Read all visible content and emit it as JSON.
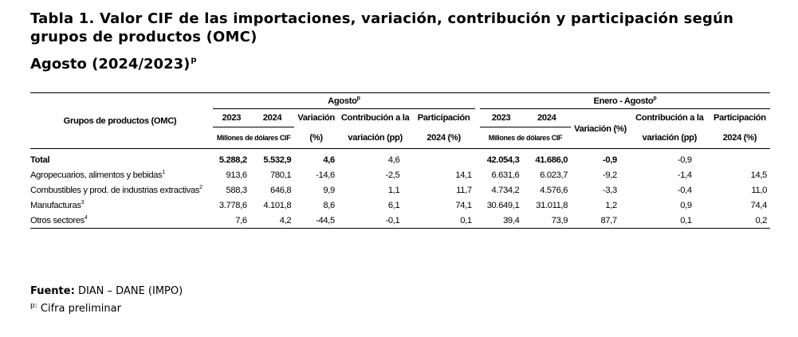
{
  "title": "Tabla 1. Valor CIF de las importaciones, variación, contribución y participación según grupos de productos (OMC)",
  "subtitle": "Agosto (2024/2023)",
  "subtitle_sup": "p",
  "table": {
    "group_header_label": "Grupos de productos (OMC)",
    "period1": "Agosto",
    "period2": "Enero - Agosto",
    "period_sup": "p",
    "year_2023": "2023",
    "year_2024": "2024",
    "millones": "Millones de dólares CIF",
    "variacion": "Variación",
    "variacion_unit": "(%)",
    "variacion_full": "Variación (%)",
    "contrib_l1": "Contribución a la",
    "contrib_l2": "variación (pp)",
    "partic_l1": "Participación",
    "partic_l2": "2024 (%)",
    "rows": [
      {
        "label": "Total",
        "sup": "",
        "a2023": "5.288,2",
        "a2024": "5.532,9",
        "var": "4,6",
        "con": "4,6",
        "par": "",
        "e2023": "42.054,3",
        "e2024": "41.686,0",
        "evar": "-0,9",
        "econ": "-0,9",
        "epar": ""
      },
      {
        "label": "Agropecuarios, alimentos y bebidas",
        "sup": "1",
        "a2023": "913,6",
        "a2024": "780,1",
        "var": "-14,6",
        "con": "-2,5",
        "par": "14,1",
        "e2023": "6.631,6",
        "e2024": "6.023,7",
        "evar": "-9,2",
        "econ": "-1,4",
        "epar": "14,5"
      },
      {
        "label": "Combustibles y prod. de industrias extractivas",
        "sup": "2",
        "a2023": "588,3",
        "a2024": "646,8",
        "var": "9,9",
        "con": "1,1",
        "par": "11,7",
        "e2023": "4.734,2",
        "e2024": "4.576,6",
        "evar": "-3,3",
        "econ": "-0,4",
        "epar": "11,0"
      },
      {
        "label": "Manufacturas",
        "sup": "3",
        "a2023": "3.778,6",
        "a2024": "4.101,8",
        "var": "8,6",
        "con": "6,1",
        "par": "74,1",
        "e2023": "30.649,1",
        "e2024": "31.011,8",
        "evar": "1,2",
        "econ": "0,9",
        "epar": "74,4"
      },
      {
        "label": "Otros sectores",
        "sup": "4",
        "a2023": "7,6",
        "a2024": "4,2",
        "var": "-44,5",
        "con": "-0,1",
        "par": "0,1",
        "e2023": "39,4",
        "e2024": "73,9",
        "evar": "87,7",
        "econ": "0,1",
        "epar": "0,2"
      }
    ]
  },
  "source_label": "Fuente:",
  "source_value": "DIAN – DANE (IMPO)",
  "note_sup": "p:",
  "note_text": "Cifra preliminar"
}
